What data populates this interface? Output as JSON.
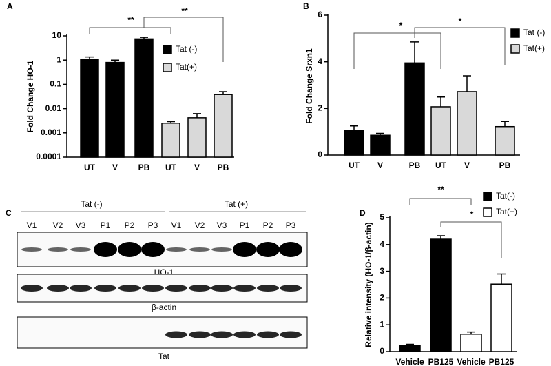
{
  "chart_data": [
    {
      "type": "bar",
      "panel": "A",
      "y_label": "Fold  Change HO-1",
      "log_scale": true,
      "categories": [
        "UT",
        "V",
        "PB",
        "UT",
        "V",
        "PB"
      ],
      "series": [
        {
          "name": "Tat (-)",
          "color": "#000000",
          "values": [
            1.1,
            0.8,
            7.5,
            null,
            null,
            null
          ],
          "errors": [
            0.25,
            0.2,
            1.2,
            null,
            null,
            null
          ]
        },
        {
          "name": "Tat(+)",
          "color": "#d9d9d9",
          "values": [
            null,
            null,
            null,
            0.0025,
            0.0042,
            0.038
          ],
          "errors": [
            null,
            null,
            null,
            0.0004,
            0.002,
            0.012
          ]
        }
      ],
      "ylim": [
        0.0001,
        10
      ],
      "yticks": [
        0.0001,
        0.001,
        0.01,
        0.1,
        1,
        10
      ],
      "annotations": [
        "**",
        "**"
      ]
    },
    {
      "type": "bar",
      "panel": "B",
      "y_label": "Fold Change Srxn1",
      "log_scale": false,
      "categories": [
        "UT",
        "V",
        "PB",
        "UT",
        "V",
        "PB"
      ],
      "series": [
        {
          "name": "Tat (-)",
          "color": "#000000",
          "values": [
            1.05,
            0.85,
            3.95,
            null,
            null,
            null
          ],
          "errors": [
            0.2,
            0.08,
            0.9,
            null,
            null,
            null
          ]
        },
        {
          "name": "Tat(+)",
          "color": "#d9d9d9",
          "values": [
            null,
            null,
            null,
            2.07,
            2.72,
            1.22
          ],
          "errors": [
            null,
            null,
            null,
            0.42,
            0.68,
            0.22
          ]
        }
      ],
      "ylim": [
        0,
        6
      ],
      "yticks": [
        0,
        2,
        4,
        6
      ],
      "annotations": [
        "*",
        "*"
      ]
    },
    {
      "type": "bar",
      "panel": "D",
      "y_label": "Relative intensity (HO-1/β-actin)",
      "log_scale": false,
      "categories": [
        "Vehicle",
        "PB125",
        "Vehicle",
        "PB125"
      ],
      "series": [
        {
          "name": "Tat(-)",
          "color": "#000000",
          "values": [
            0.22,
            4.2,
            null,
            null
          ],
          "errors": [
            0.05,
            0.13,
            null,
            null
          ]
        },
        {
          "name": "Tat(+)",
          "color": "#ffffff",
          "values": [
            null,
            null,
            0.65,
            2.52
          ],
          "errors": [
            null,
            null,
            0.08,
            0.38
          ]
        }
      ],
      "ylim": [
        0,
        5
      ],
      "yticks": [
        0,
        1,
        2,
        3,
        4,
        5
      ],
      "annotations": [
        "**",
        "*"
      ]
    }
  ],
  "blot": {
    "panel": "C",
    "groups": [
      "Tat (-)",
      "Tat (+)"
    ],
    "lanes": [
      "V1",
      "V2",
      "V3",
      "P1",
      "P2",
      "P3",
      "V1",
      "V2",
      "V3",
      "P1",
      "P2",
      "P3"
    ],
    "rows": [
      "HO-1",
      "β-actin",
      "Tat"
    ]
  }
}
